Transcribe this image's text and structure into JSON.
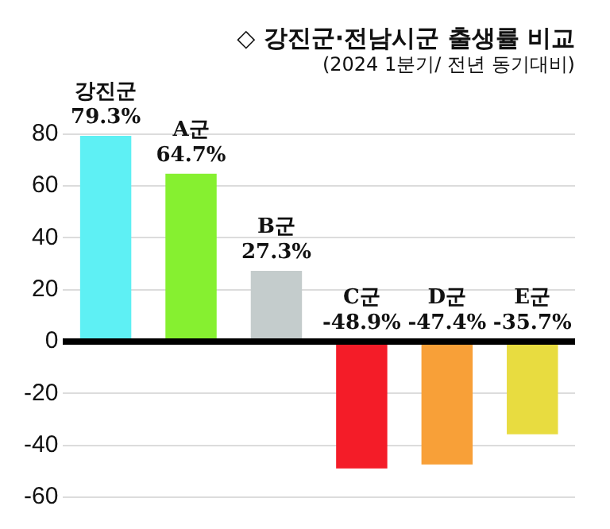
{
  "chart_data": {
    "type": "bar",
    "title": "◇ 강진군·전남시군 출생률 비교",
    "subtitle": "(2024 1분기/ 전년 동기대비)",
    "categories": [
      "강진군",
      "A군",
      "B군",
      "C군",
      "D군",
      "E군"
    ],
    "values": [
      79.3,
      64.7,
      27.3,
      -48.9,
      -47.4,
      -35.7
    ],
    "colors": [
      "#5ef0f4",
      "#86f030",
      "#c4cccc",
      "#f41c28",
      "#f8a038",
      "#e8dc40"
    ],
    "value_labels": [
      "79.3%",
      "64.7%",
      "27.3%",
      "-48.9%",
      "-47.4%",
      "-35.7%"
    ],
    "ylim": [
      -60,
      80
    ],
    "yticks": [
      -60,
      -40,
      -20,
      0,
      20,
      40,
      60,
      80
    ],
    "grid": "y",
    "tick_labels": "y",
    "legend": false
  }
}
